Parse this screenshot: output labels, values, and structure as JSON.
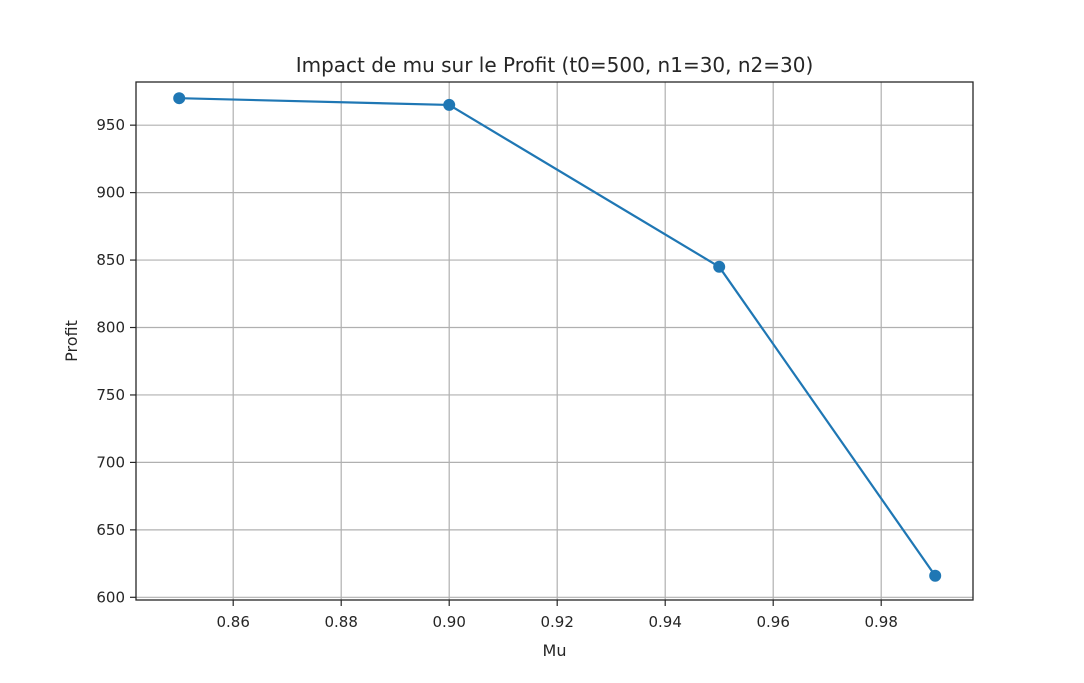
{
  "chart_data": {
    "type": "line",
    "title": "Impact de mu sur le Profit (t0=500, n1=30, n2=30)",
    "xlabel": "Mu",
    "ylabel": "Profit",
    "xlim": [
      0.842,
      0.997
    ],
    "ylim": [
      598,
      982
    ],
    "xticks": [
      0.86,
      0.88,
      0.9,
      0.92,
      0.94,
      0.96,
      0.98
    ],
    "xtick_labels": [
      "0.86",
      "0.88",
      "0.90",
      "0.92",
      "0.94",
      "0.96",
      "0.98"
    ],
    "yticks": [
      600,
      650,
      700,
      750,
      800,
      850,
      900,
      950
    ],
    "ytick_labels": [
      "600",
      "650",
      "700",
      "750",
      "800",
      "850",
      "900",
      "950"
    ],
    "grid": true,
    "series": [
      {
        "x": [
          0.85,
          0.9,
          0.95,
          0.99
        ],
        "y": [
          970,
          965,
          845,
          616
        ],
        "color": "#1f77b4",
        "marker": "circle"
      }
    ]
  }
}
